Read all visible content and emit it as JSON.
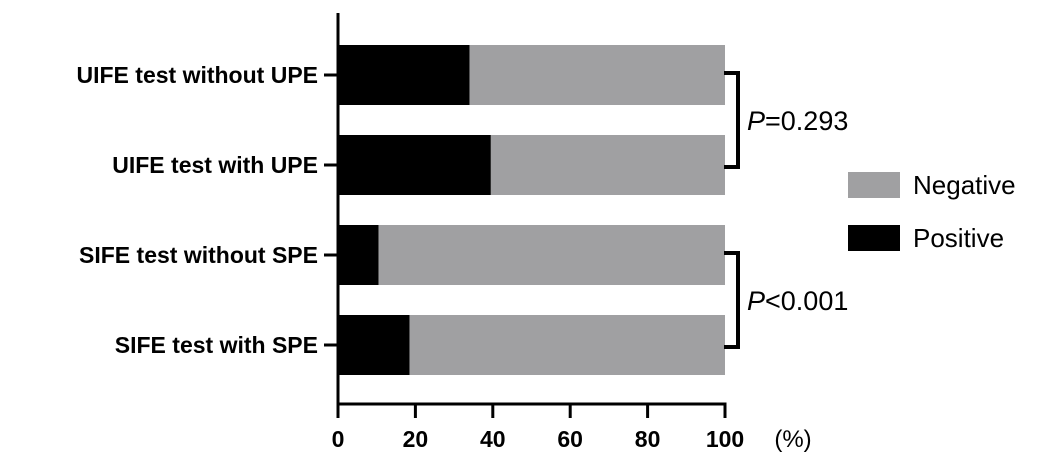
{
  "chart_data": {
    "type": "bar",
    "orientation": "horizontal",
    "stacked": true,
    "categories": [
      "UIFE test without UPE",
      "UIFE test with UPE",
      "SIFE test without SPE",
      "SIFE test with SPE"
    ],
    "series": [
      {
        "name": "Positive",
        "values": [
          34,
          39.5,
          10.5,
          18.5
        ]
      },
      {
        "name": "Negative",
        "values": [
          66,
          60.5,
          89.5,
          81.5
        ]
      }
    ],
    "xlim": [
      0,
      100
    ],
    "xticks": [
      0,
      20,
      40,
      60,
      80,
      100
    ],
    "x_unit": "(%)",
    "grid": false,
    "legend": {
      "position": "right",
      "entries": [
        "Negative",
        "Positive"
      ]
    },
    "annotations": [
      {
        "groups": [
          0,
          1
        ],
        "prefix": "P",
        "text": "=0.293"
      },
      {
        "groups": [
          2,
          3
        ],
        "prefix": "P",
        "text": "<0.001"
      }
    ],
    "colors": {
      "Positive": "#000000",
      "Negative": "#a0a0a2"
    }
  }
}
